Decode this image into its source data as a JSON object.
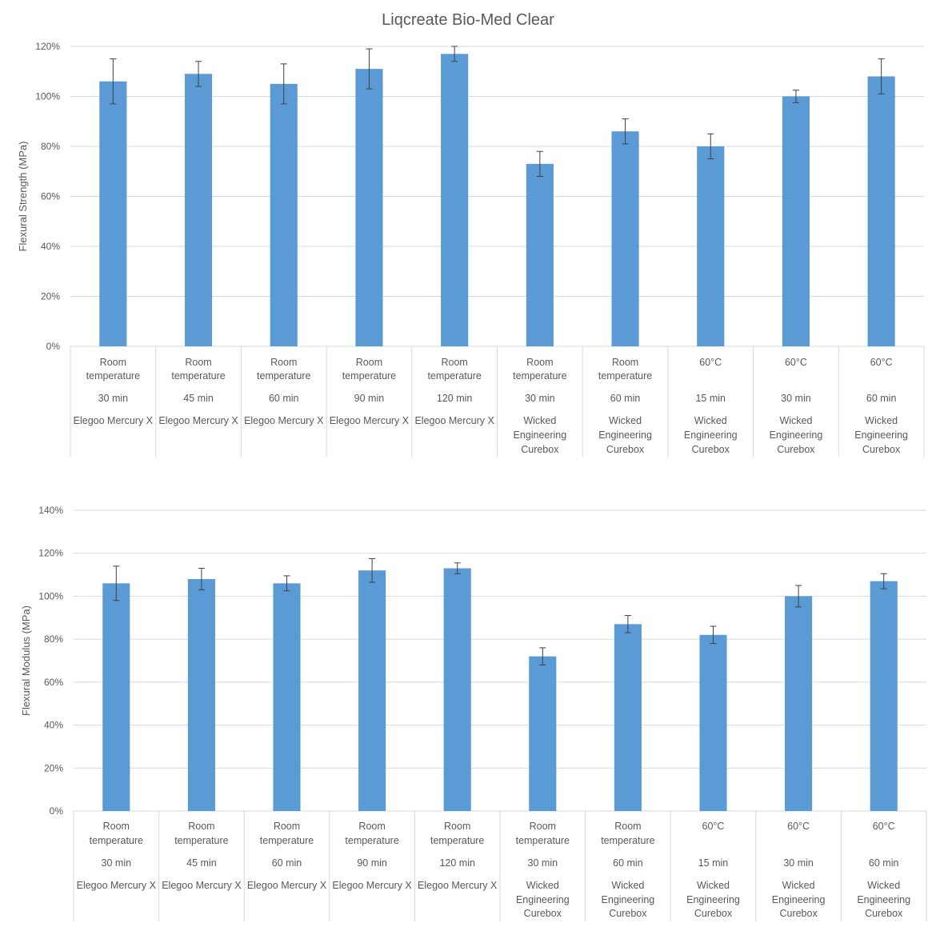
{
  "title": "Liqcreate Bio-Med Clear",
  "categories": [
    {
      "temp_line1": "Room",
      "temp_line2": "temperature",
      "time": "30 min",
      "device_line1": "Elegoo Mercury X",
      "device_line2": "",
      "device_line3": ""
    },
    {
      "temp_line1": "Room",
      "temp_line2": "temperature",
      "time": "45 min",
      "device_line1": "Elegoo Mercury X",
      "device_line2": "",
      "device_line3": ""
    },
    {
      "temp_line1": "Room",
      "temp_line2": "temperature",
      "time": "60 min",
      "device_line1": "Elegoo Mercury X",
      "device_line2": "",
      "device_line3": ""
    },
    {
      "temp_line1": "Room",
      "temp_line2": "temperature",
      "time": "90 min",
      "device_line1": "Elegoo Mercury X",
      "device_line2": "",
      "device_line3": ""
    },
    {
      "temp_line1": "Room",
      "temp_line2": "temperature",
      "time": "120 min",
      "device_line1": "Elegoo Mercury X",
      "device_line2": "",
      "device_line3": ""
    },
    {
      "temp_line1": "Room",
      "temp_line2": "temperature",
      "time": "30 min",
      "device_line1": "Wicked",
      "device_line2": "Engineering",
      "device_line3": "Curebox"
    },
    {
      "temp_line1": "Room",
      "temp_line2": "temperature",
      "time": "60 min",
      "device_line1": "Wicked",
      "device_line2": "Engineering",
      "device_line3": "Curebox"
    },
    {
      "temp_line1": "60°C",
      "temp_line2": "",
      "time": "15 min",
      "device_line1": "Wicked",
      "device_line2": "Engineering",
      "device_line3": "Curebox"
    },
    {
      "temp_line1": "60°C",
      "temp_line2": "",
      "time": "30 min",
      "device_line1": "Wicked",
      "device_line2": "Engineering",
      "device_line3": "Curebox"
    },
    {
      "temp_line1": "60°C",
      "temp_line2": "",
      "time": "60 min",
      "device_line1": "Wicked",
      "device_line2": "Engineering",
      "device_line3": "Curebox"
    }
  ],
  "colors": {
    "bar": "#5b9bd5",
    "grid": "#d9d9d9",
    "text": "#595959",
    "error_bar": "#404040"
  },
  "chart_data": [
    {
      "type": "bar",
      "title": "Liqcreate Bio-Med Clear",
      "xlabel": "",
      "ylabel": "Flexural Strength (MPa)",
      "ylim": [
        0,
        120
      ],
      "yticks": [
        0,
        20,
        40,
        60,
        80,
        100,
        120
      ],
      "ytick_labels": [
        "0%",
        "20%",
        "40%",
        "60%",
        "80%",
        "100%",
        "120%"
      ],
      "values": [
        106,
        109,
        105,
        111,
        117,
        73,
        86,
        80,
        100,
        108
      ],
      "errors": [
        9,
        5,
        8,
        8,
        3,
        5,
        5,
        5,
        2.5,
        7
      ],
      "grid": true
    },
    {
      "type": "bar",
      "title": "",
      "xlabel": "",
      "ylabel": "Flexural Modulus (MPa)",
      "ylim": [
        0,
        140
      ],
      "yticks": [
        0,
        20,
        40,
        60,
        80,
        100,
        120,
        140
      ],
      "ytick_labels": [
        "0%",
        "20%",
        "40%",
        "60%",
        "80%",
        "100%",
        "120%",
        "140%"
      ],
      "values": [
        106,
        108,
        106,
        112,
        113,
        72,
        87,
        82,
        100,
        107
      ],
      "errors": [
        8,
        5,
        3.5,
        5.5,
        2.5,
        4,
        4,
        4,
        5,
        3.5
      ],
      "grid": true
    }
  ]
}
